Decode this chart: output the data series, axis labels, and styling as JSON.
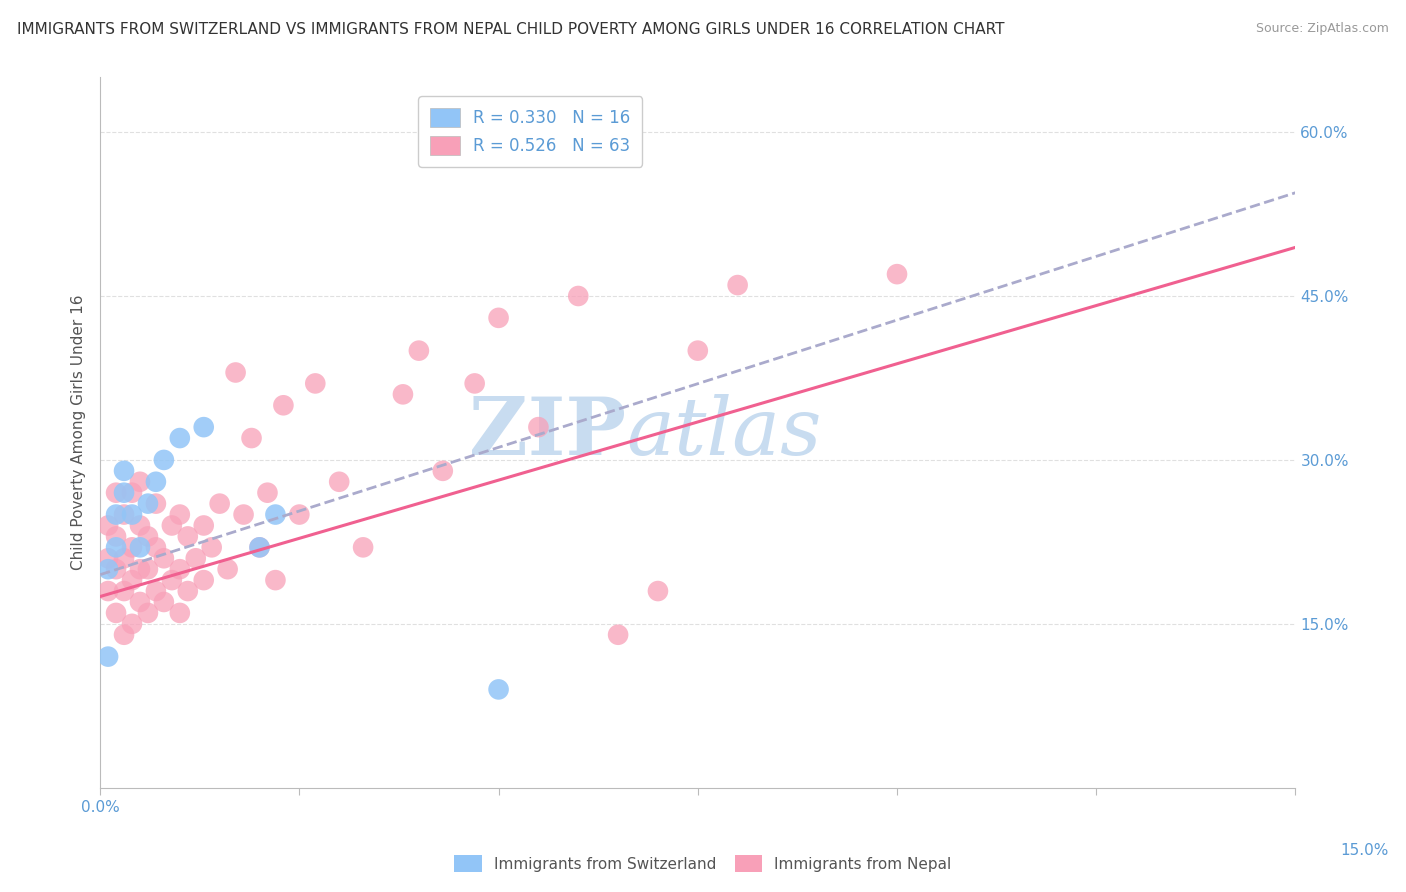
{
  "title": "IMMIGRANTS FROM SWITZERLAND VS IMMIGRANTS FROM NEPAL CHILD POVERTY AMONG GIRLS UNDER 16 CORRELATION CHART",
  "source": "Source: ZipAtlas.com",
  "ylabel": "Child Poverty Among Girls Under 16",
  "xlim": [
    0.0,
    0.15
  ],
  "ylim": [
    0.0,
    0.65
  ],
  "x_ticks": [
    0.0,
    0.025,
    0.05,
    0.075,
    0.1,
    0.125,
    0.15
  ],
  "y_ticks_right": [
    0.15,
    0.3,
    0.45,
    0.6
  ],
  "y_tick_labels_right": [
    "15.0%",
    "30.0%",
    "45.0%",
    "60.0%"
  ],
  "R_switzerland": 0.33,
  "N_switzerland": 16,
  "R_nepal": 0.526,
  "N_nepal": 63,
  "color_switzerland": "#92C5F7",
  "color_nepal": "#F8A0B8",
  "line_color_switzerland": "#AAAACC",
  "line_color_nepal": "#F06090",
  "watermark_color": "#C8DCF0",
  "background_color": "#FFFFFF",
  "grid_color": "#DDDDDD",
  "title_fontsize": 11,
  "swiss_x": [
    0.001,
    0.002,
    0.002,
    0.003,
    0.003,
    0.004,
    0.005,
    0.006,
    0.007,
    0.008,
    0.01,
    0.013,
    0.02,
    0.022,
    0.05,
    0.001
  ],
  "swiss_y": [
    0.2,
    0.25,
    0.22,
    0.27,
    0.29,
    0.25,
    0.22,
    0.26,
    0.28,
    0.3,
    0.32,
    0.33,
    0.22,
    0.25,
    0.09,
    0.12
  ],
  "nepal_x": [
    0.001,
    0.001,
    0.001,
    0.002,
    0.002,
    0.002,
    0.002,
    0.003,
    0.003,
    0.003,
    0.003,
    0.004,
    0.004,
    0.004,
    0.004,
    0.005,
    0.005,
    0.005,
    0.005,
    0.006,
    0.006,
    0.006,
    0.007,
    0.007,
    0.007,
    0.008,
    0.008,
    0.009,
    0.009,
    0.01,
    0.01,
    0.01,
    0.011,
    0.011,
    0.012,
    0.013,
    0.013,
    0.014,
    0.015,
    0.016,
    0.017,
    0.018,
    0.019,
    0.02,
    0.021,
    0.022,
    0.023,
    0.025,
    0.027,
    0.03,
    0.033,
    0.038,
    0.04,
    0.043,
    0.047,
    0.05,
    0.055,
    0.06,
    0.065,
    0.07,
    0.075,
    0.08,
    0.1
  ],
  "nepal_y": [
    0.18,
    0.21,
    0.24,
    0.16,
    0.2,
    0.23,
    0.27,
    0.14,
    0.18,
    0.21,
    0.25,
    0.15,
    0.19,
    0.22,
    0.27,
    0.17,
    0.2,
    0.24,
    0.28,
    0.16,
    0.2,
    0.23,
    0.18,
    0.22,
    0.26,
    0.17,
    0.21,
    0.19,
    0.24,
    0.16,
    0.2,
    0.25,
    0.18,
    0.23,
    0.21,
    0.19,
    0.24,
    0.22,
    0.26,
    0.2,
    0.38,
    0.25,
    0.32,
    0.22,
    0.27,
    0.19,
    0.35,
    0.25,
    0.37,
    0.28,
    0.22,
    0.36,
    0.4,
    0.29,
    0.37,
    0.43,
    0.33,
    0.45,
    0.14,
    0.18,
    0.4,
    0.46,
    0.47
  ]
}
